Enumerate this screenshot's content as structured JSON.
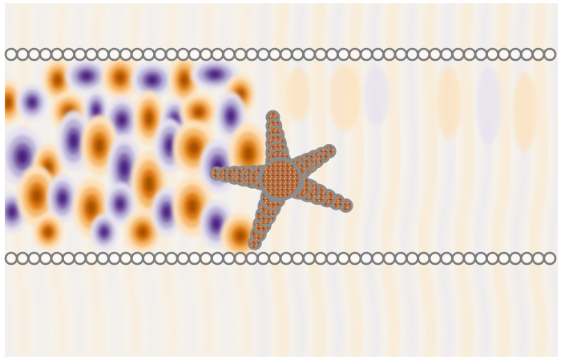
{
  "scene": {
    "description_free": true,
    "colors": {
      "background": "#ffffff",
      "field_neutral": "#f6f3ec",
      "positive_light": "#fde2bd",
      "positive_mid": "#f6b567",
      "positive_dark": "#d9770f",
      "positive_deep": "#a44d04",
      "negative_light": "#e6e3f0",
      "negative_mid": "#b7afd5",
      "negative_dark": "#7a62a8",
      "negative_deep": "#4a1f7e",
      "bead_stroke": "#7b7b7b",
      "starfish_body": "#b06a40",
      "starfish_outline": "#8c8c8c"
    },
    "bead_chains": [
      {
        "name": "upper-chain",
        "beads": 48
      },
      {
        "name": "lower-chain",
        "beads": 48
      }
    ],
    "starfish": {
      "arms": 5
    }
  }
}
